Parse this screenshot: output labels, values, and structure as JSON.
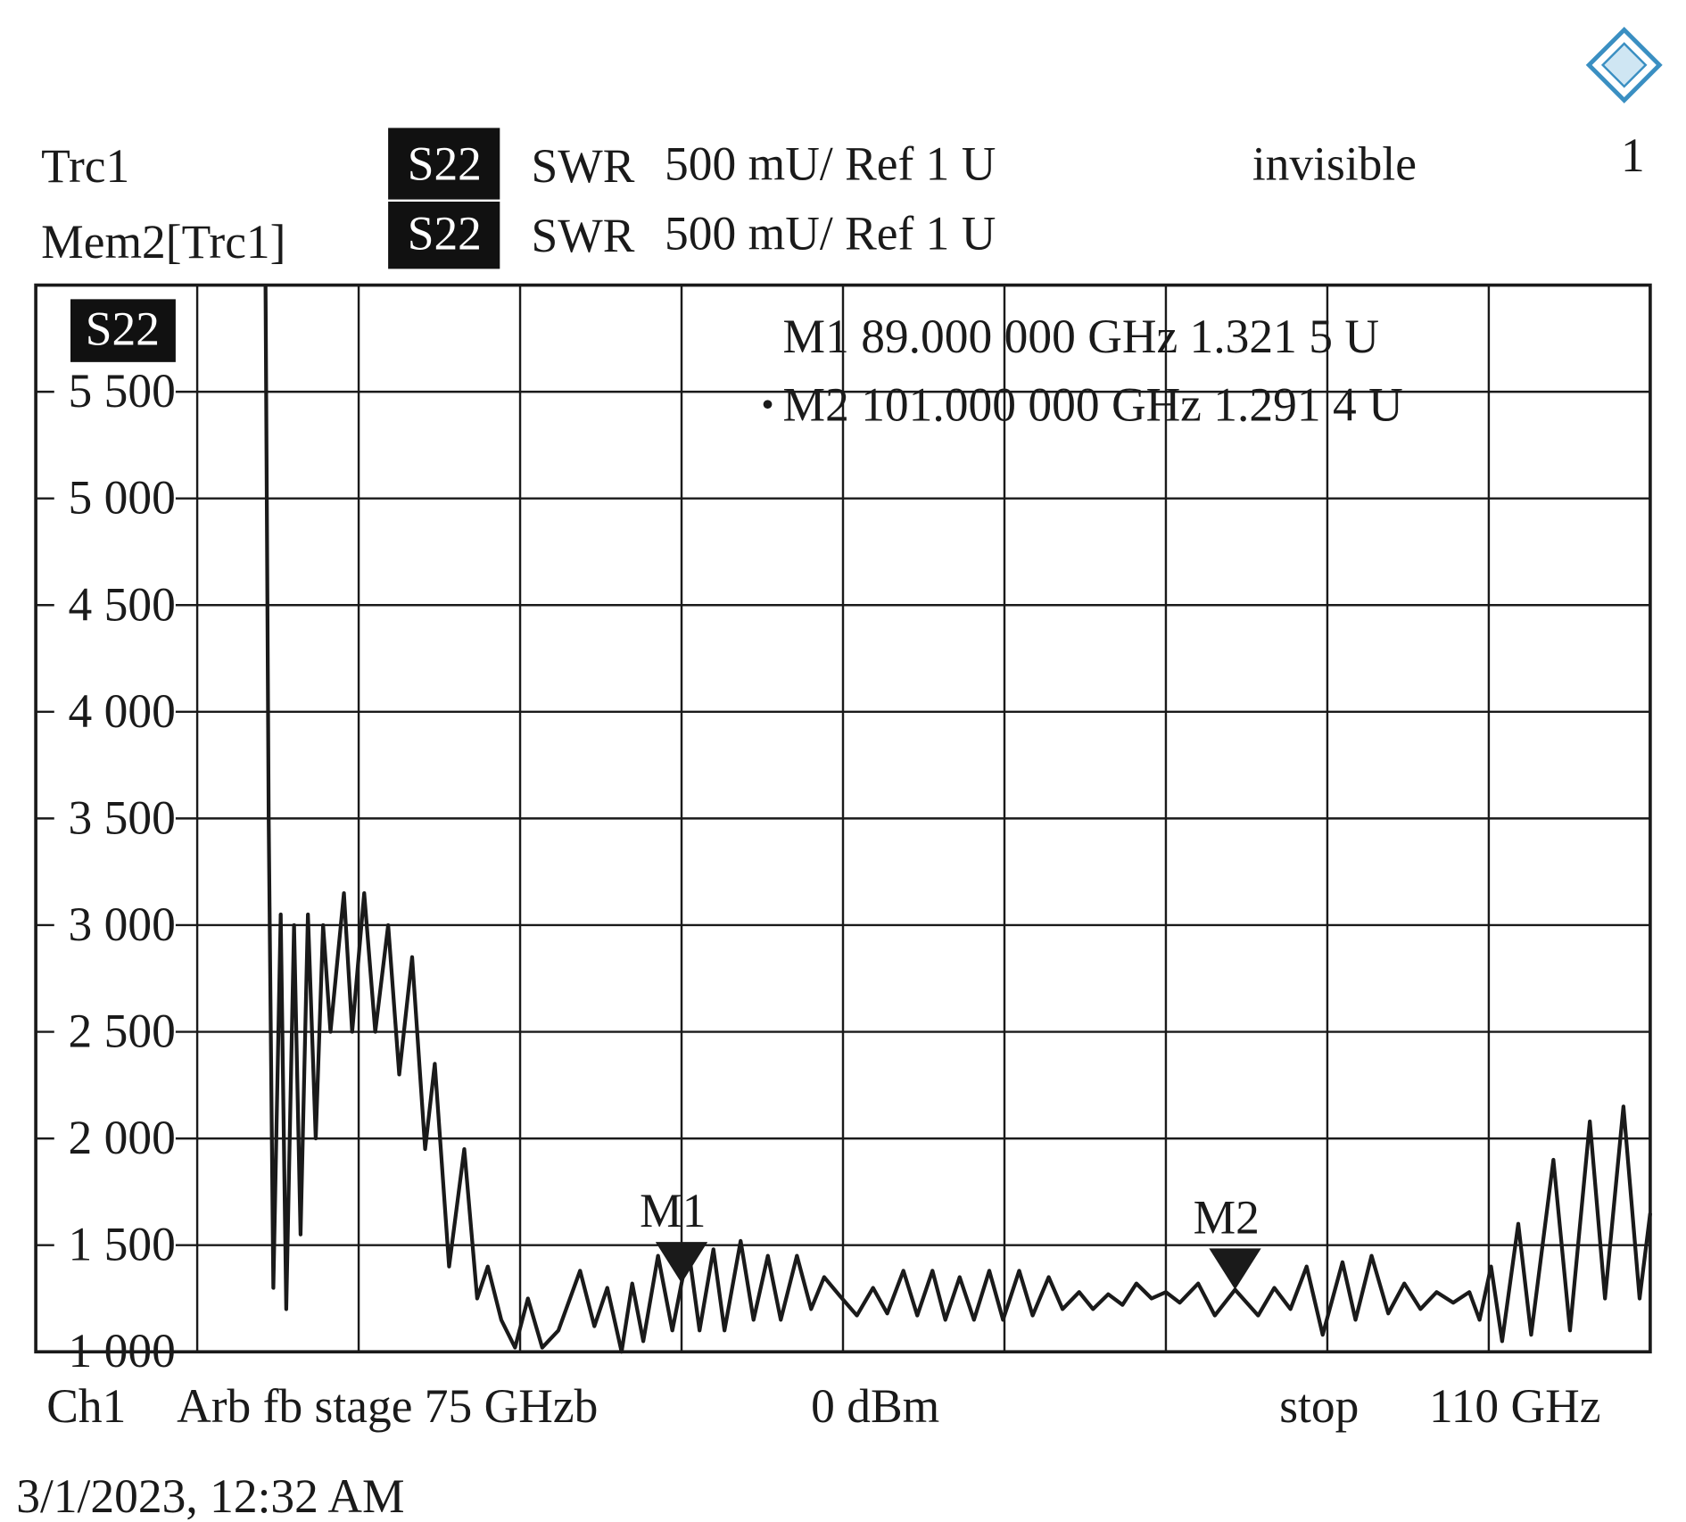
{
  "chart_data": {
    "type": "line",
    "header": [
      {
        "trace": "Trc1",
        "param": "S22",
        "format": "SWR",
        "scale": "500 mU/ Ref 1 U",
        "state": "invisible"
      },
      {
        "trace": "Mem2[Trc1]",
        "param": "S22",
        "format": "SWR",
        "scale": "500 mU/ Ref 1 U"
      }
    ],
    "window": "1",
    "plot_label": "S22",
    "x": [
      79.98,
      80.05,
      80.15,
      80.31,
      80.43,
      80.6,
      80.74,
      80.9,
      81.07,
      81.23,
      81.39,
      81.68,
      81.86,
      82.12,
      82.36,
      82.64,
      82.88,
      83.16,
      83.44,
      83.65,
      83.96,
      84.29,
      84.57,
      84.8,
      85.09,
      85.39,
      85.67,
      85.98,
      86.33,
      86.8,
      87.11,
      87.39,
      87.7,
      87.93,
      88.17,
      88.49,
      88.8,
      89,
      89.15,
      89.39,
      89.69,
      89.93,
      90.28,
      90.56,
      90.87,
      91.15,
      91.5,
      91.81,
      92.09,
      92.44,
      92.8,
      93.15,
      93.46,
      93.81,
      94.11,
      94.44,
      94.72,
      95.03,
      95.34,
      95.67,
      95.97,
      96.32,
      96.61,
      96.96,
      97.26,
      97.62,
      97.92,
      98.25,
      98.56,
      98.86,
      99.19,
      99.5,
      99.8,
      100.2,
      100.56,
      101,
      101.5,
      101.85,
      102.2,
      102.55,
      102.9,
      103.33,
      103.61,
      103.96,
      104.32,
      104.67,
      105.02,
      105.37,
      105.73,
      106.08,
      106.3,
      106.55,
      106.79,
      107.14,
      107.42,
      107.9,
      108.26,
      108.69,
      109.02,
      109.42,
      109.77,
      110
    ],
    "series": [
      {
        "name": "Trc1",
        "color": "#1a1a1a",
        "values": [
          6000,
          3500,
          1300,
          3050,
          1200,
          3000,
          1550,
          3050,
          2000,
          3000,
          2500,
          3150,
          2500,
          3150,
          2500,
          3000,
          2300,
          2850,
          1950,
          2350,
          1400,
          1950,
          1250,
          1400,
          1150,
          1020,
          1250,
          1020,
          1100,
          1380,
          1120,
          1300,
          1000,
          1320,
          1050,
          1450,
          1100,
          1321.5,
          1480,
          1100,
          1480,
          1100,
          1520,
          1150,
          1450,
          1150,
          1450,
          1200,
          1350,
          1260,
          1170,
          1300,
          1180,
          1380,
          1170,
          1380,
          1150,
          1350,
          1150,
          1380,
          1150,
          1380,
          1170,
          1350,
          1200,
          1280,
          1200,
          1270,
          1220,
          1320,
          1250,
          1280,
          1230,
          1320,
          1170,
          1291.4,
          1170,
          1300,
          1200,
          1400,
          1080,
          1420,
          1150,
          1450,
          1180,
          1320,
          1200,
          1280,
          1230,
          1280,
          1150,
          1400,
          1050,
          1600,
          1080,
          1900,
          1100,
          2080,
          1250,
          2150,
          1250,
          1650
        ]
      }
    ],
    "xlim": [
      75,
      110
    ],
    "xticks": [
      78.5,
      82,
      85.5,
      89,
      92.5,
      96,
      99.5,
      103,
      106.5
    ],
    "ylim": [
      1000,
      6000
    ],
    "yticks": [
      {
        "value": 1000,
        "label": "1 000"
      },
      {
        "value": 1500,
        "label": "1 500"
      },
      {
        "value": 2000,
        "label": "2 000"
      },
      {
        "value": 2500,
        "label": "2 500"
      },
      {
        "value": 3000,
        "label": "3 000"
      },
      {
        "value": 3500,
        "label": "3 500"
      },
      {
        "value": 4000,
        "label": "4 000"
      },
      {
        "value": 4500,
        "label": "4 500"
      },
      {
        "value": 5000,
        "label": "5 000"
      },
      {
        "value": 5500,
        "label": "5 500"
      }
    ],
    "grid": true,
    "markers": [
      {
        "label": "M1",
        "x": 89,
        "value": 1321.5,
        "readout": "M1 89.000 000 GHz 1.321 5 U",
        "active": false
      },
      {
        "label": "M2",
        "x": 101,
        "value": 1291.4,
        "readout": "M2 101.000 000 GHz 1.291 4 U",
        "active": true
      }
    ],
    "footer": {
      "channel": "Ch1",
      "start": "Arb fb stage 75 GHzb",
      "power": "0 dBm",
      "stop_label": "stop",
      "stop": "110 GHz"
    },
    "timestamp": "3/1/2023, 12:32 AM"
  }
}
